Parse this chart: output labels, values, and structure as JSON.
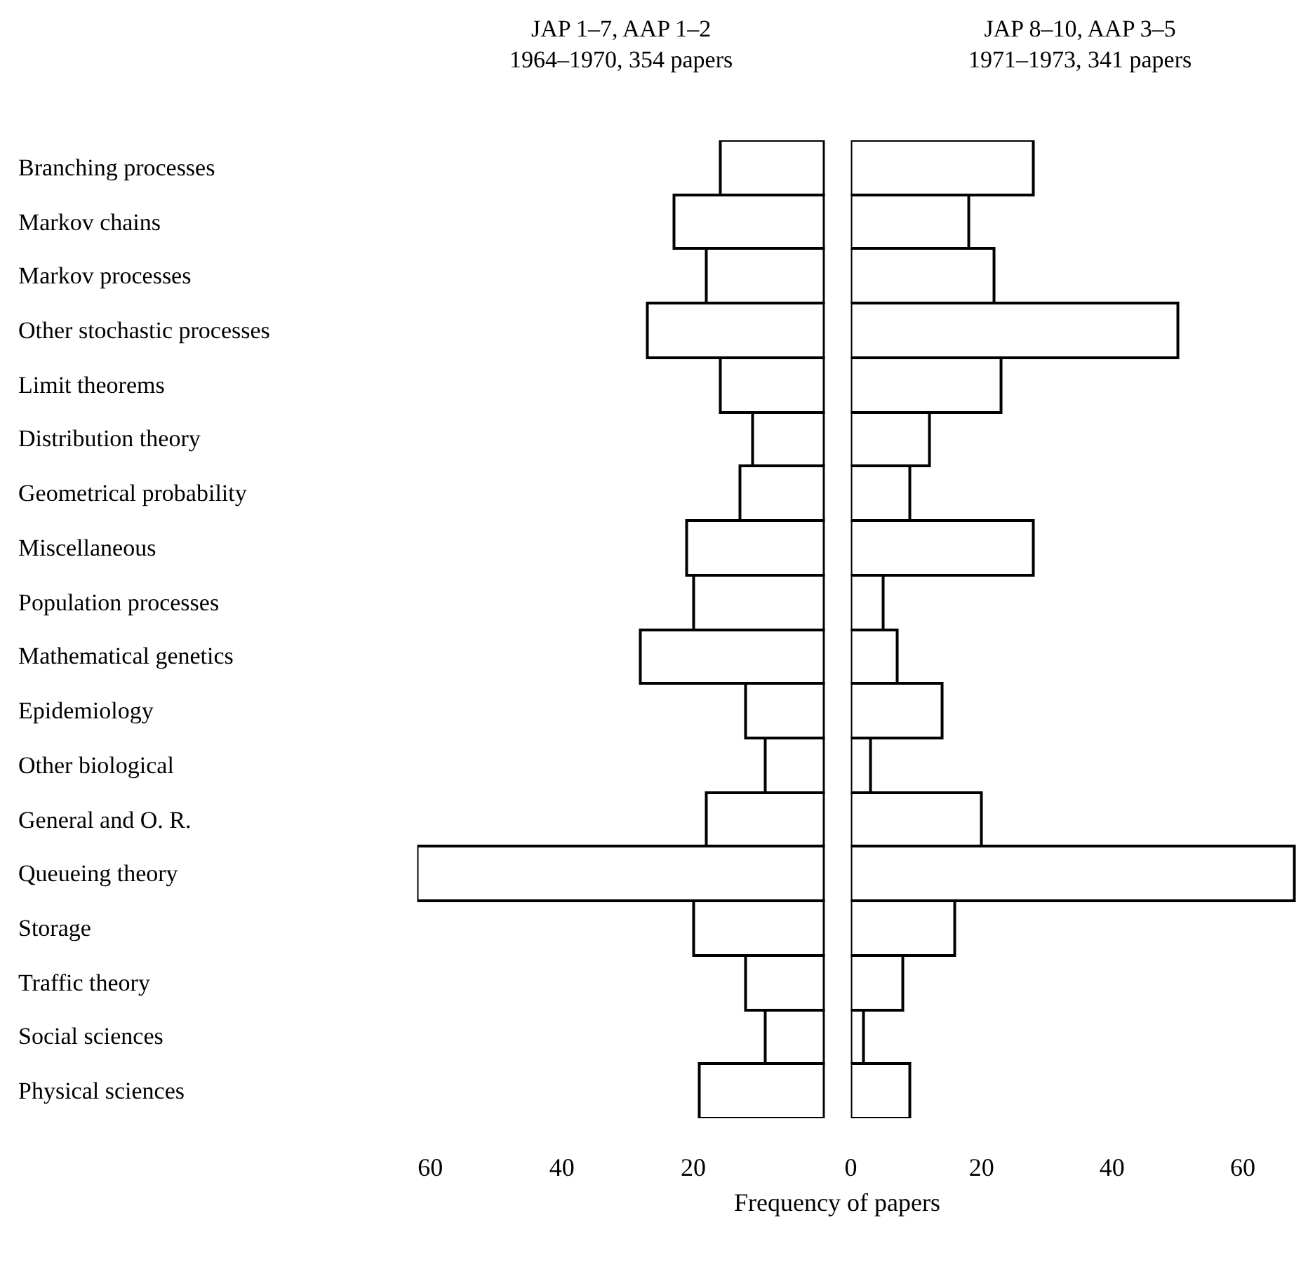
{
  "chart_data": [
    {
      "type": "bar",
      "orientation": "horizontal",
      "title": "JAP 1–7, AAP 1–2\n1964–1970, 354 papers",
      "xlabel": "Frequency of papers",
      "categories": [
        "Branching processes",
        "Markov chains",
        "Markov processes",
        "Other stochastic processes",
        "Limit theorems",
        "Distribution theory",
        "Geometrical probability",
        "Miscellaneous",
        "Population processes",
        "Mathematical genetics",
        "Epidemiology",
        "Other biological",
        "General and O. R.",
        "Queueing theory",
        "Storage",
        "Traffic theory",
        "Social sciences",
        "Physical sciences"
      ],
      "values": [
        16,
        23,
        18,
        27,
        16,
        11,
        13,
        21,
        20,
        28,
        12,
        9,
        18,
        62,
        20,
        12,
        9,
        19
      ],
      "color": "#ffffff",
      "xlim": [
        62,
        0
      ],
      "xticks": [
        60,
        40,
        20
      ]
    },
    {
      "type": "bar",
      "orientation": "horizontal",
      "title": "JAP 8–10, AAP 3–5\n1971–1973, 341 papers",
      "tick_labels": "x",
      "values": [
        28,
        18,
        22,
        50,
        23,
        12,
        9,
        28,
        5,
        7,
        14,
        3,
        20,
        68,
        16,
        8,
        2,
        9
      ],
      "color": "#ffffff",
      "xlim": [
        0,
        70
      ],
      "xticks": [
        0,
        20,
        40,
        60
      ]
    }
  ]
}
